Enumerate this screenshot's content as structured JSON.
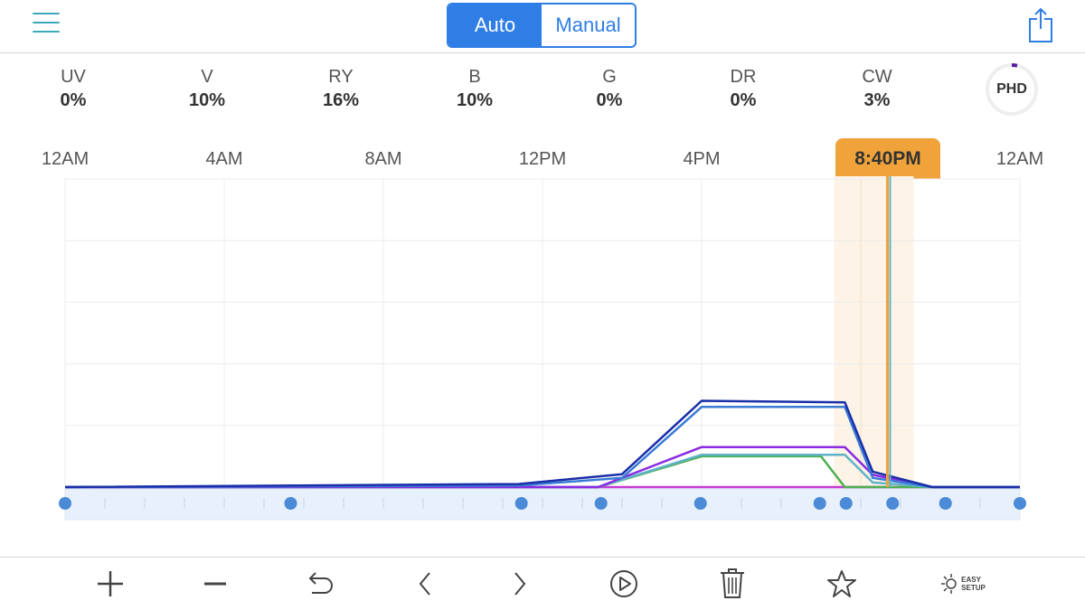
{
  "mode": {
    "auto_label": "Auto",
    "manual_label": "Manual",
    "selected": "Auto"
  },
  "channels": [
    {
      "name": "UV",
      "value": "0%"
    },
    {
      "name": "V",
      "value": "10%"
    },
    {
      "name": "RY",
      "value": "16%"
    },
    {
      "name": "B",
      "value": "10%"
    },
    {
      "name": "G",
      "value": "0%"
    },
    {
      "name": "DR",
      "value": "0%"
    },
    {
      "name": "CW",
      "value": "3%"
    }
  ],
  "preset_badge": "PHD",
  "time_labels": [
    "12AM",
    "4AM",
    "8AM",
    "12PM",
    "4PM",
    "12AM"
  ],
  "cursor_time": "8:40PM",
  "colors": {
    "accent": "#2f7ee6",
    "teal": "#3aa9b8",
    "cursor": "#f0a33a",
    "highlight": "#fdf3e6",
    "timeline_band": "#e8f0fc",
    "point": "#4a8ad6"
  },
  "chart_data": {
    "type": "line",
    "x_unit": "hours",
    "xlim": [
      0,
      24
    ],
    "ylim": [
      0,
      100
    ],
    "cursor_x": 20.67,
    "highlight_range": [
      19.33,
      21.33
    ],
    "series": [
      {
        "color": "#1a2fa8",
        "points": [
          [
            0,
            0
          ],
          [
            11.4,
            1
          ],
          [
            14.0,
            4.2
          ],
          [
            16.0,
            28
          ],
          [
            19.6,
            27.5
          ],
          [
            20.3,
            5
          ],
          [
            21.8,
            0
          ],
          [
            24,
            0
          ]
        ]
      },
      {
        "color": "#3a7bd5",
        "points": [
          [
            0,
            0
          ],
          [
            11.4,
            0.5
          ],
          [
            14.0,
            3
          ],
          [
            16.0,
            26
          ],
          [
            19.6,
            26
          ],
          [
            20.3,
            3
          ],
          [
            21.8,
            0
          ],
          [
            24,
            0
          ]
        ]
      },
      {
        "color": "#8a2be2",
        "points": [
          [
            0,
            0
          ],
          [
            11.4,
            0
          ],
          [
            13.4,
            0
          ],
          [
            16.0,
            13
          ],
          [
            19.6,
            13
          ],
          [
            20.3,
            4
          ],
          [
            21.8,
            0
          ],
          [
            24,
            0
          ]
        ]
      },
      {
        "color": "#5fb3c8",
        "points": [
          [
            0,
            0
          ],
          [
            13.4,
            0
          ],
          [
            16.0,
            10.5
          ],
          [
            19.6,
            10.5
          ],
          [
            20.3,
            1.5
          ],
          [
            21.8,
            0
          ],
          [
            24,
            0
          ]
        ]
      },
      {
        "color": "#4caf50",
        "points": [
          [
            0,
            0
          ],
          [
            13.4,
            0
          ],
          [
            16.0,
            10
          ],
          [
            19.0,
            10
          ],
          [
            19.6,
            0
          ],
          [
            24,
            0
          ]
        ]
      },
      {
        "color": "#c83ad6",
        "points": [
          [
            0,
            0
          ],
          [
            24,
            0
          ]
        ]
      }
    ],
    "control_points_x": [
      0,
      5.67,
      11.47,
      13.47,
      15.97,
      18.97,
      19.63,
      20.8,
      22.13,
      24
    ]
  },
  "toolbar": {
    "add_icon": "plus-icon",
    "remove_icon": "minus-icon",
    "undo_icon": "undo-icon",
    "prev_icon": "chevron-left-icon",
    "next_icon": "chevron-right-icon",
    "play_icon": "play-circle-icon",
    "delete_icon": "trash-icon",
    "favorite_icon": "star-icon",
    "easy_setup_label_1": "EASY",
    "easy_setup_label_2": "SETUP"
  }
}
